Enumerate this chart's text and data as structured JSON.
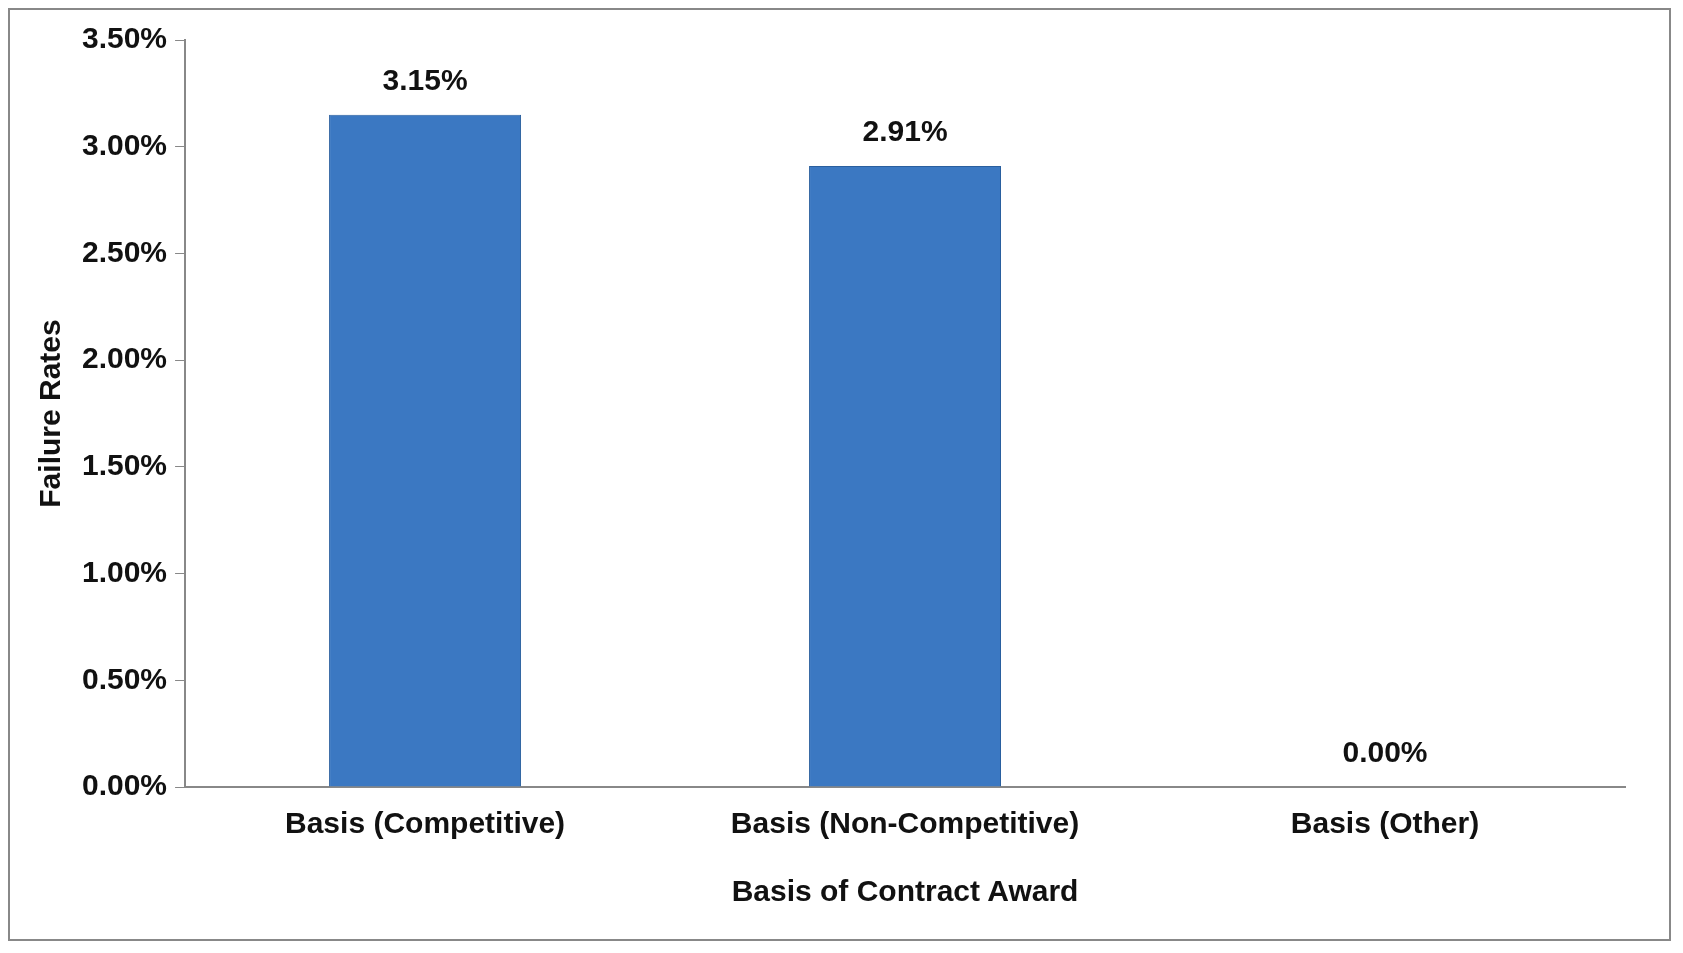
{
  "chart_data": {
    "type": "bar",
    "xlabel": "Basis of Contract Award",
    "ylabel": "Failure Rates",
    "categories": [
      "Basis (Competitive)",
      "Basis (Non-Competitive)",
      "Basis (Other)"
    ],
    "values": [
      3.15,
      2.91,
      0
    ],
    "color": "#3b78c2",
    "value_labels": [
      "3.15%",
      "2.91%",
      "0.00%"
    ],
    "ylim": [
      0,
      3.5
    ],
    "yticks": [
      {
        "value": 0,
        "label": "0.00%"
      },
      {
        "value": 0.5,
        "label": "0.50%"
      },
      {
        "value": 1,
        "label": "1.00%"
      },
      {
        "value": 1.5,
        "label": "1.50%"
      },
      {
        "value": 2,
        "label": "2.00%"
      },
      {
        "value": 2.5,
        "label": "2.50%"
      },
      {
        "value": 3,
        "label": "3.00%"
      },
      {
        "value": 3.5,
        "label": "3.50%"
      }
    ],
    "grid": false,
    "legend": false
  }
}
